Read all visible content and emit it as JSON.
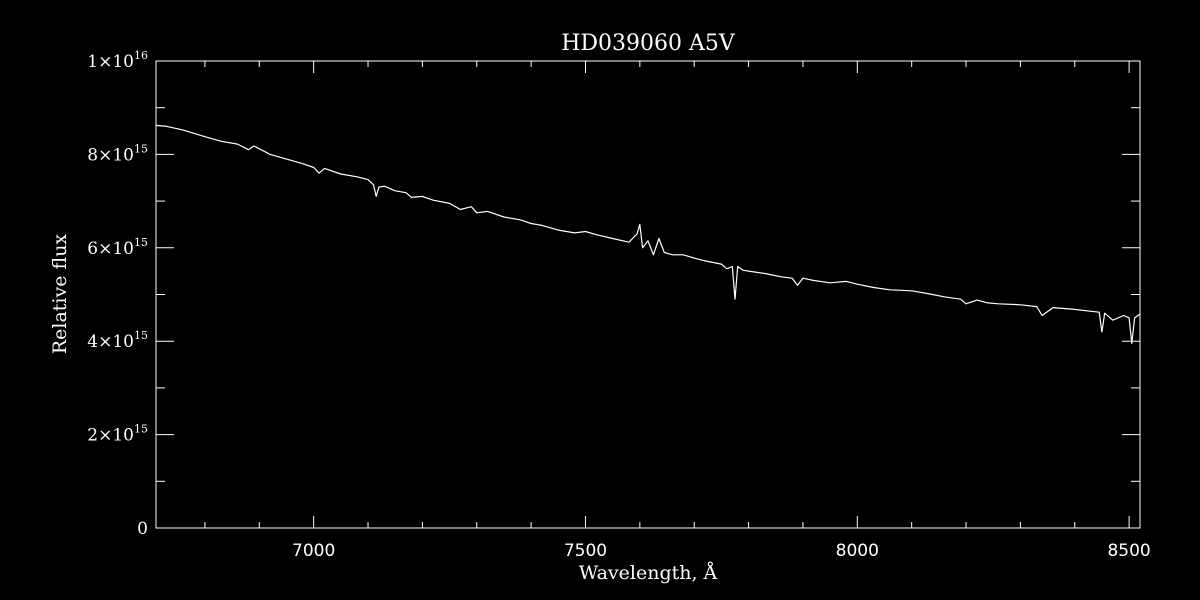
{
  "chart_data": {
    "type": "line",
    "title": "HD039060   A5V",
    "xlabel": "Wavelength, Å",
    "ylabel": "Relative flux",
    "xlim": [
      6710,
      8520
    ],
    "ylim": [
      0,
      1e+16
    ],
    "x_ticks": [
      {
        "value": 7000,
        "label": "7000"
      },
      {
        "value": 7500,
        "label": "7500"
      },
      {
        "value": 8000,
        "label": "8000"
      },
      {
        "value": 8500,
        "label": "8500"
      }
    ],
    "y_ticks": [
      {
        "value": 0,
        "label": "0",
        "mant": "",
        "exp": ""
      },
      {
        "value": 2000000000000000.0,
        "label": "2×10^15",
        "mant": "2×10",
        "exp": "15"
      },
      {
        "value": 4000000000000000.0,
        "label": "4×10^15",
        "mant": "4×10",
        "exp": "15"
      },
      {
        "value": 6000000000000000.0,
        "label": "6×10^15",
        "mant": "6×10",
        "exp": "15"
      },
      {
        "value": 8000000000000000.0,
        "label": "8×10^15",
        "mant": "8×10",
        "exp": "15"
      },
      {
        "value": 1e+16,
        "label": "1×10^16",
        "mant": "1×10",
        "exp": "16"
      }
    ],
    "series": [
      {
        "color": "#ffffff",
        "x": [
          6710,
          6730,
          6760,
          6800,
          6830,
          6860,
          6880,
          6890,
          6900,
          6920,
          6950,
          6980,
          7000,
          7010,
          7020,
          7050,
          7080,
          7100,
          7110,
          7115,
          7120,
          7130,
          7150,
          7170,
          7180,
          7200,
          7220,
          7250,
          7270,
          7290,
          7300,
          7320,
          7350,
          7380,
          7400,
          7420,
          7450,
          7480,
          7500,
          7520,
          7550,
          7580,
          7595,
          7600,
          7605,
          7615,
          7625,
          7635,
          7645,
          7660,
          7680,
          7700,
          7720,
          7750,
          7760,
          7770,
          7775,
          7780,
          7790,
          7800,
          7830,
          7860,
          7880,
          7890,
          7900,
          7920,
          7950,
          7980,
          8000,
          8030,
          8060,
          8100,
          8130,
          8160,
          8190,
          8200,
          8220,
          8240,
          8260,
          8300,
          8330,
          8340,
          8360,
          8400,
          8430,
          8445,
          8450,
          8455,
          8470,
          8490,
          8500,
          8505,
          8510,
          8520
        ],
        "y": [
          8620000000000000.0,
          8600000000000000.0,
          8520000000000000.0,
          8380000000000000.0,
          8280000000000000.0,
          8220000000000000.0,
          8100000000000000.0,
          8180000000000000.0,
          8120000000000000.0,
          8000000000000000.0,
          7900000000000000.0,
          7800000000000000.0,
          7720000000000000.0,
          7600000000000000.0,
          7700000000000000.0,
          7580000000000000.0,
          7520000000000000.0,
          7460000000000000.0,
          7350000000000000.0,
          7100000000000000.0,
          7300000000000000.0,
          7320000000000000.0,
          7220000000000000.0,
          7180000000000000.0,
          7080000000000000.0,
          7100000000000000.0,
          7020000000000000.0,
          6950000000000000.0,
          6820000000000000.0,
          6880000000000000.0,
          6750000000000000.0,
          6780000000000000.0,
          6660000000000000.0,
          6600000000000000.0,
          6520000000000000.0,
          6480000000000000.0,
          6380000000000000.0,
          6320000000000000.0,
          6350000000000000.0,
          6280000000000000.0,
          6200000000000000.0,
          6120000000000000.0,
          6300000000000000.0,
          6500000000000000.0,
          6000000000000000.0,
          6150000000000000.0,
          5850000000000000.0,
          6200000000000000.0,
          5900000000000000.0,
          5850000000000000.0,
          5850000000000000.0,
          5780000000000000.0,
          5720000000000000.0,
          5650000000000000.0,
          5550000000000000.0,
          5600000000000000.0,
          4900000000000000.0,
          5600000000000000.0,
          5520000000000000.0,
          5500000000000000.0,
          5450000000000000.0,
          5380000000000000.0,
          5350000000000000.0,
          5200000000000000.0,
          5350000000000000.0,
          5300000000000000.0,
          5250000000000000.0,
          5280000000000000.0,
          5220000000000000.0,
          5150000000000000.0,
          5100000000000000.0,
          5080000000000000.0,
          5020000000000000.0,
          4950000000000000.0,
          4900000000000000.0,
          4800000000000000.0,
          4880000000000000.0,
          4820000000000000.0,
          4800000000000000.0,
          4780000000000000.0,
          4740000000000000.0,
          4550000000000000.0,
          4720000000000000.0,
          4680000000000000.0,
          4640000000000000.0,
          4620000000000000.0,
          4200000000000000.0,
          4600000000000000.0,
          4450000000000000.0,
          4550000000000000.0,
          4500000000000000.0,
          3950000000000000.0,
          4500000000000000.0,
          4580000000000000.0
        ]
      }
    ]
  }
}
